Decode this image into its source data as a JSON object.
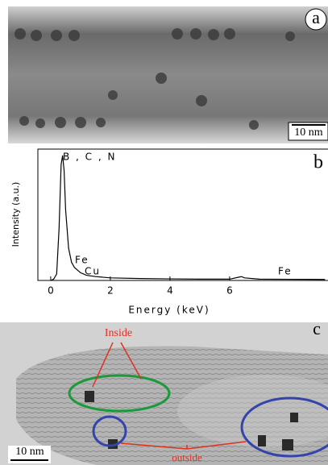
{
  "panel_a": {
    "label": "a",
    "scale_bar": "10 nm"
  },
  "chart_data": {
    "type": "line",
    "panel_label": "b",
    "xlabel": "Energy (keV)",
    "ylabel": "Intensity (a.u.)",
    "x": [
      0,
      0.1,
      0.2,
      0.28,
      0.35,
      0.4,
      0.45,
      0.5,
      0.6,
      0.7,
      0.8,
      0.9,
      1.0,
      1.2,
      1.5,
      2,
      3,
      4,
      5,
      6,
      6.3,
      6.4,
      6.5,
      7,
      8,
      9.2
    ],
    "values": [
      0,
      1,
      5,
      40,
      90,
      97,
      85,
      55,
      25,
      14,
      10,
      8,
      6,
      4,
      3,
      2,
      1.5,
      1.2,
      1,
      1,
      2.5,
      3,
      2,
      1,
      0.9,
      0.8
    ],
    "color": "#000000",
    "xlim": [
      -0.43,
      9.3
    ],
    "ylim": [
      0,
      100
    ],
    "xticks": [
      0,
      2,
      4,
      6
    ],
    "annotations": [
      "B , C , N",
      "Fe",
      "Cu",
      "Fe"
    ]
  },
  "panel_c": {
    "label": "c",
    "scale_bar": "10 nm",
    "inside": "Inside",
    "outside": "outside"
  }
}
